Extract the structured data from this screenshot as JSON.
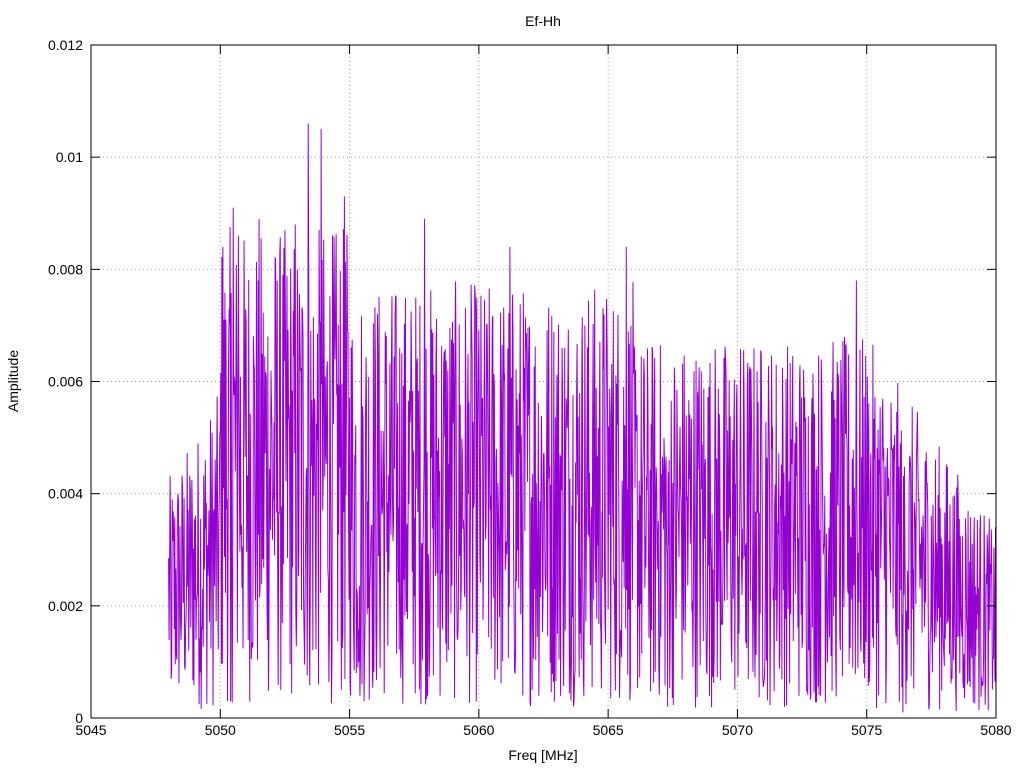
{
  "chart_data": {
    "type": "line",
    "title": "Ef-Hh",
    "xlabel": "Freq [MHz]",
    "ylabel": "Amplitude",
    "xlim": [
      5045,
      5080
    ],
    "ylim": [
      0,
      0.012
    ],
    "xticks": [
      "5045",
      "5050",
      "5055",
      "5060",
      "5065",
      "5070",
      "5075",
      "5080"
    ],
    "yticks": [
      "0",
      "0.002",
      "0.004",
      "0.006",
      "0.008",
      "0.01",
      "0.012"
    ],
    "grid": true,
    "series_color": "#9400d3",
    "series": [
      {
        "x_range": [
          5048.0,
          5080.0
        ],
        "peaks": [
          {
            "x": 5050.1,
            "y": 0.0084
          },
          {
            "x": 5050.5,
            "y": 0.0091
          },
          {
            "x": 5050.7,
            "y": 0.0086
          },
          {
            "x": 5051.5,
            "y": 0.0089
          },
          {
            "x": 5052.9,
            "y": 0.0088
          },
          {
            "x": 5053.4,
            "y": 0.0106
          },
          {
            "x": 5053.9,
            "y": 0.0105
          },
          {
            "x": 5054.8,
            "y": 0.0093
          },
          {
            "x": 5057.9,
            "y": 0.0089
          },
          {
            "x": 5061.2,
            "y": 0.0084
          },
          {
            "x": 5065.7,
            "y": 0.0084
          },
          {
            "x": 5074.6,
            "y": 0.0078
          }
        ],
        "troughs": [
          {
            "x": 5048.1,
            "y": 0.0007
          },
          {
            "x": 5050.4,
            "y": 0.0003
          },
          {
            "x": 5055.4,
            "y": 0.0004
          },
          {
            "x": 5067.3,
            "y": 0.0002
          },
          {
            "x": 5076.4,
            "y": 0.0001
          },
          {
            "x": 5080.0,
            "y": 0.0005
          }
        ]
      }
    ]
  }
}
